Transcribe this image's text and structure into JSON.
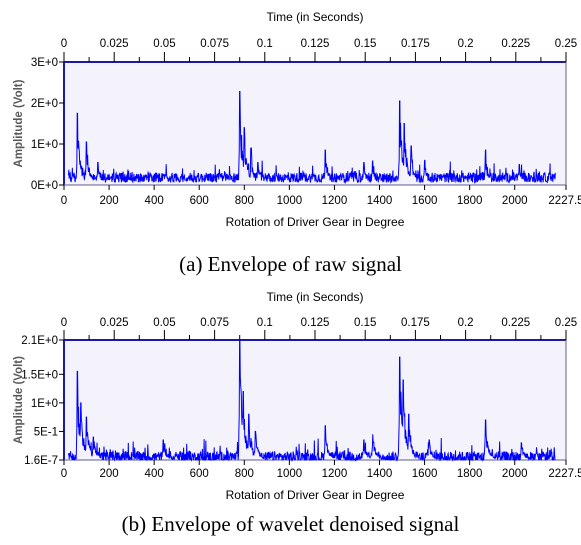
{
  "chart_data": [
    {
      "type": "line",
      "caption": "(a) Envelope of raw signal",
      "top_axis_label": "Time (in Seconds)",
      "top_ticks": [
        "0",
        "0.025",
        "0.05",
        "0.075",
        "0.1",
        "0.125",
        "0.15",
        "0.175",
        "0.2",
        "0.225",
        "0.25"
      ],
      "top_xlim": [
        0,
        0.25
      ],
      "xlabel": "Rotation of Driver Gear in Degree",
      "xlim": [
        0,
        2227.5
      ],
      "x_ticks": [
        "0",
        "200",
        "400",
        "600",
        "800",
        "1000",
        "1200",
        "1400",
        "1600",
        "1800",
        "2000",
        "2227.5"
      ],
      "ylabel": "Amplitude (Volt)",
      "ylim": [
        0,
        3
      ],
      "y_ticks": [
        {
          "label": "3E+0",
          "value": 3
        },
        {
          "label": "2E+0",
          "value": 2
        },
        {
          "label": "1E+0",
          "value": 1
        },
        {
          "label": "0E+0",
          "value": 0
        }
      ],
      "series": [
        {
          "color": "#0000ff",
          "x_range": [
            20,
            2180
          ],
          "baseline": 0.18,
          "noise": 0.12,
          "peaks": [
            {
              "x": 60,
              "y": 1.75
            },
            {
              "x": 100,
              "y": 1.05
            },
            {
              "x": 150,
              "y": 0.55
            },
            {
              "x": 780,
              "y": 2.28
            },
            {
              "x": 800,
              "y": 1.4
            },
            {
              "x": 830,
              "y": 0.9
            },
            {
              "x": 860,
              "y": 0.55
            },
            {
              "x": 1160,
              "y": 0.85
            },
            {
              "x": 1330,
              "y": 0.55
            },
            {
              "x": 1370,
              "y": 0.6
            },
            {
              "x": 1490,
              "y": 2.05
            },
            {
              "x": 1510,
              "y": 1.5
            },
            {
              "x": 1540,
              "y": 0.95
            },
            {
              "x": 1600,
              "y": 0.6
            },
            {
              "x": 1870,
              "y": 0.85
            },
            {
              "x": 2020,
              "y": 0.5
            }
          ]
        }
      ]
    },
    {
      "type": "line",
      "caption": "(b) Envelope of wavelet denoised signal",
      "top_axis_label": "Time (in Seconds)",
      "top_ticks": [
        "0",
        "0.025",
        "0.05",
        "0.075",
        "0.1",
        "0.125",
        "0.15",
        "0.175",
        "0.2",
        "0.225",
        "0.25"
      ],
      "top_xlim": [
        0,
        0.25
      ],
      "xlabel": "Rotation of Driver Gear in Degree",
      "xlim": [
        0,
        2227.5
      ],
      "x_ticks": [
        "0",
        "200",
        "400",
        "600",
        "800",
        "1000",
        "1200",
        "1400",
        "1600",
        "1800",
        "2000",
        "2227.5"
      ],
      "ylabel": "Amplitude (Volt)",
      "ylim": [
        1.6e-07,
        2.1
      ],
      "y_ticks": [
        {
          "label": "2.1E+0",
          "value": 2.1
        },
        {
          "label": "1.5E+0",
          "value": 1.5
        },
        {
          "label": "1E+0",
          "value": 1
        },
        {
          "label": "5E-1",
          "value": 0.5
        },
        {
          "label": "1.6E-7",
          "value": 1.6e-07
        }
      ],
      "series": [
        {
          "color": "#0000ff",
          "x_range": [
            20,
            2180
          ],
          "baseline": 0.05,
          "noise": 0.1,
          "peaks": [
            {
              "x": 60,
              "y": 1.55
            },
            {
              "x": 75,
              "y": 1.0
            },
            {
              "x": 100,
              "y": 0.75
            },
            {
              "x": 130,
              "y": 0.4
            },
            {
              "x": 440,
              "y": 0.35
            },
            {
              "x": 780,
              "y": 2.1
            },
            {
              "x": 795,
              "y": 1.2
            },
            {
              "x": 820,
              "y": 0.8
            },
            {
              "x": 850,
              "y": 0.5
            },
            {
              "x": 1160,
              "y": 0.6
            },
            {
              "x": 1330,
              "y": 0.35
            },
            {
              "x": 1370,
              "y": 0.45
            },
            {
              "x": 1490,
              "y": 1.8
            },
            {
              "x": 1505,
              "y": 1.4
            },
            {
              "x": 1530,
              "y": 0.8
            },
            {
              "x": 1620,
              "y": 0.35
            },
            {
              "x": 1870,
              "y": 0.7
            },
            {
              "x": 2030,
              "y": 0.3
            }
          ]
        }
      ]
    }
  ]
}
